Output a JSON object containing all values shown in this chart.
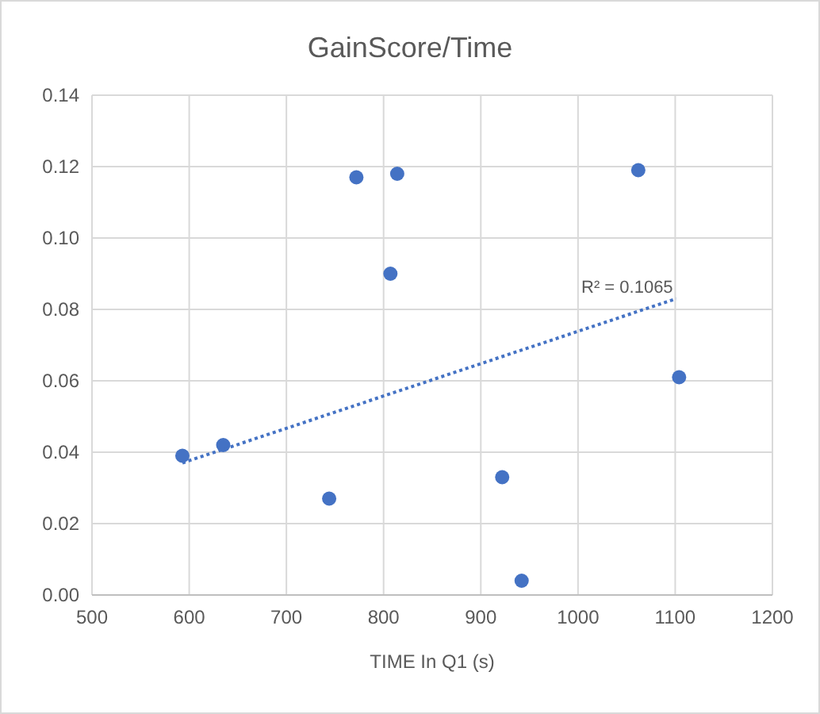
{
  "chart_data": {
    "type": "scatter",
    "title": "GainScore/Time",
    "xlabel": "TIME In Q1 (s)",
    "xlim": [
      500,
      1200
    ],
    "xticks": [
      500,
      600,
      700,
      800,
      900,
      1000,
      1100,
      1200
    ],
    "ylim": [
      0,
      0.14
    ],
    "yticks": [
      {
        "value": 0,
        "label": "0.00"
      },
      {
        "value": 0.02,
        "label": "0.02"
      },
      {
        "value": 0.04,
        "label": "0.04"
      },
      {
        "value": 0.06,
        "label": "0.06"
      },
      {
        "value": 0.08,
        "label": "0.08"
      },
      {
        "value": 0.1,
        "label": "0.10"
      },
      {
        "value": 0.12,
        "label": "0.12"
      },
      {
        "value": 0.14,
        "label": "0.14"
      }
    ],
    "grid": true,
    "marker": "circle",
    "series": [
      {
        "color": "#4472c4",
        "x": [
          593,
          635,
          744,
          772,
          814,
          807,
          922,
          942,
          1062,
          1104
        ],
        "values": [
          0.039,
          0.042,
          0.027,
          0.117,
          0.118,
          0.09,
          0.033,
          0.004,
          0.119,
          0.061
        ]
      },
      {
        "type": "line",
        "color": "#4472c4",
        "line_style": "dotted",
        "marker": "none",
        "x": [
          593,
          1101
        ],
        "values": [
          0.037,
          0.083
        ]
      }
    ],
    "annotations": [
      "R² = 0.1065"
    ]
  }
}
